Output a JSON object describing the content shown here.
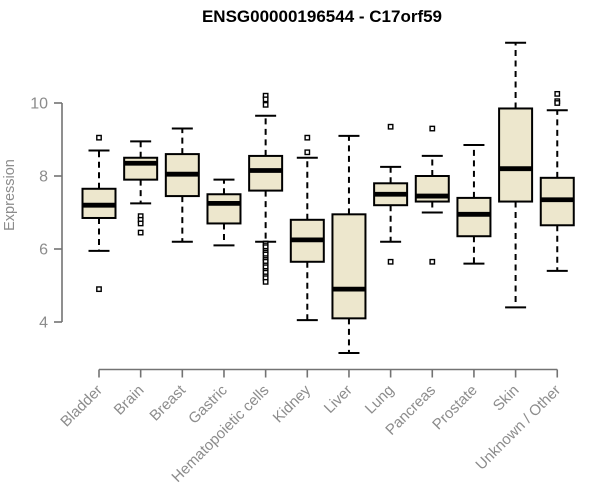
{
  "colors": {
    "background": "#ffffff",
    "box_fill": "#EDE7CD",
    "box_stroke": "#000000",
    "median": "#000000",
    "whisker": "#000000",
    "outlier_stroke": "#000000",
    "outlier_fill": "#ffffff",
    "axis_line": "#737373",
    "axis_label": "#8c8c8c",
    "title": "#000000"
  },
  "chart_data": {
    "type": "boxplot",
    "title": "ENSG00000196544 - C17orf59",
    "ylabel": "Expression",
    "xlabel": "",
    "y_axis_range": [
      4,
      10
    ],
    "yticks": [
      4,
      6,
      8,
      10
    ],
    "grid": false,
    "legend": false,
    "x_labels_rotation_deg": 45,
    "categories": [
      "Bladder",
      "Brain",
      "Breast",
      "Gastric",
      "Hematopoietic cells",
      "Kidney",
      "Liver",
      "Lung",
      "Pancreas",
      "Prostate",
      "Skin",
      "Unknown / Other"
    ],
    "series": [
      {
        "name": "Bladder",
        "whisker_low": 5.95,
        "q1": 6.85,
        "median": 7.2,
        "q3": 7.65,
        "whisker_high": 8.7,
        "outliers": [
          9.05,
          4.9
        ]
      },
      {
        "name": "Brain",
        "whisker_low": 7.25,
        "q1": 7.9,
        "median": 8.35,
        "q3": 8.5,
        "whisker_high": 8.95,
        "outliers": [
          6.9,
          6.8,
          6.7,
          6.45
        ]
      },
      {
        "name": "Breast",
        "whisker_low": 6.2,
        "q1": 7.45,
        "median": 8.05,
        "q3": 8.6,
        "whisker_high": 9.3,
        "outliers": []
      },
      {
        "name": "Gastric",
        "whisker_low": 6.1,
        "q1": 6.7,
        "median": 7.25,
        "q3": 7.5,
        "whisker_high": 7.9,
        "outliers": []
      },
      {
        "name": "Hematopoietic cells",
        "whisker_low": 6.2,
        "q1": 7.6,
        "median": 8.15,
        "q3": 8.55,
        "whisker_high": 9.65,
        "outliers": [
          10.2,
          10.1,
          9.95,
          6.15,
          6.1,
          6.05,
          5.95,
          5.9,
          5.85,
          5.75,
          5.7,
          5.65,
          5.55,
          5.5,
          5.4,
          5.35,
          5.25,
          5.2,
          5.1
        ]
      },
      {
        "name": "Kidney",
        "whisker_low": 4.05,
        "q1": 5.65,
        "median": 6.25,
        "q3": 6.8,
        "whisker_high": 8.5,
        "outliers": [
          9.05,
          8.65
        ]
      },
      {
        "name": "Liver",
        "whisker_low": 3.15,
        "q1": 4.1,
        "median": 4.9,
        "q3": 6.95,
        "whisker_high": 9.1,
        "outliers": []
      },
      {
        "name": "Lung",
        "whisker_low": 6.2,
        "q1": 7.2,
        "median": 7.5,
        "q3": 7.8,
        "whisker_high": 8.25,
        "outliers": [
          9.35,
          5.65
        ]
      },
      {
        "name": "Pancreas",
        "whisker_low": 7.0,
        "q1": 7.3,
        "median": 7.45,
        "q3": 8.0,
        "whisker_high": 8.55,
        "outliers": [
          9.3,
          5.65
        ]
      },
      {
        "name": "Prostate",
        "whisker_low": 5.6,
        "q1": 6.35,
        "median": 6.95,
        "q3": 7.4,
        "whisker_high": 8.85,
        "outliers": []
      },
      {
        "name": "Skin",
        "whisker_low": 4.4,
        "q1": 7.3,
        "median": 8.2,
        "q3": 9.85,
        "whisker_high": 11.65,
        "outliers": []
      },
      {
        "name": "Unknown / Other",
        "whisker_low": 5.4,
        "q1": 6.65,
        "median": 7.35,
        "q3": 7.95,
        "whisker_high": 9.8,
        "outliers": [
          10.25,
          10.05,
          10.0
        ]
      }
    ]
  }
}
